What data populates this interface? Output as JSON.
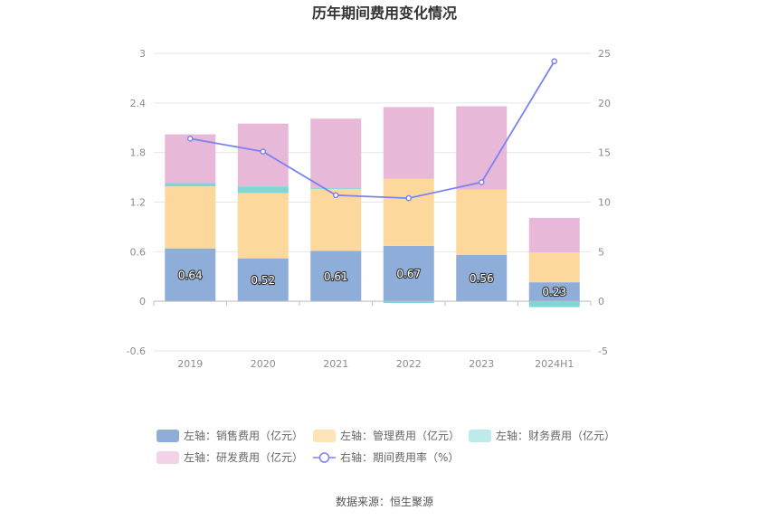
{
  "chart_data": {
    "type": "bar",
    "title": "历年期间费用变化情况",
    "categories": [
      "2019",
      "2020",
      "2021",
      "2022",
      "2023",
      "2024H1"
    ],
    "left_axis": {
      "min": -0.6,
      "max": 3,
      "ticks": [
        "3",
        "2.4",
        "1.8",
        "1.2",
        "0.6",
        "0",
        "-0.6"
      ]
    },
    "right_axis": {
      "min": -5,
      "max": 25,
      "ticks": [
        "25",
        "20",
        "15",
        "10",
        "5",
        "0",
        "-5"
      ]
    },
    "series": [
      {
        "name": "左轴：销售费用（亿元）",
        "type": "bar",
        "stack": "left",
        "color": "#8eadd9",
        "values": [
          0.64,
          0.52,
          0.61,
          0.67,
          0.56,
          0.23
        ],
        "labels": [
          "0.64",
          "0.52",
          "0.61",
          "0.67",
          "0.56",
          "0.23"
        ]
      },
      {
        "name": "左轴：管理费用（亿元）",
        "type": "bar",
        "stack": "left",
        "color": "#fdd89c",
        "values": [
          0.75,
          0.79,
          0.75,
          0.81,
          0.79,
          0.36
        ]
      },
      {
        "name": "左轴：财务费用（亿元）",
        "type": "bar",
        "stack": "left",
        "color": "#7fd6d6",
        "values": [
          0.04,
          0.08,
          0.01,
          -0.02,
          0.0,
          -0.07
        ]
      },
      {
        "name": "左轴：研发费用（亿元）",
        "type": "bar",
        "stack": "left",
        "color": "#e8b8d9",
        "values": [
          0.59,
          0.76,
          0.84,
          0.87,
          1.01,
          0.42
        ]
      },
      {
        "name": "右轴：期间费用率（%）",
        "type": "line",
        "axis": "right",
        "color": "#7b83ef",
        "values": [
          16.4,
          15.1,
          10.7,
          10.4,
          12.0,
          24.2
        ]
      }
    ],
    "grid": true,
    "legend_position": "bottom"
  },
  "source_text": "数据来源：恒生聚源"
}
